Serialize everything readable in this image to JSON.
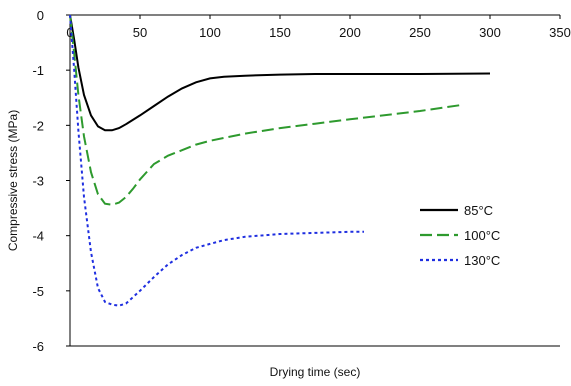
{
  "chart_data": {
    "type": "line",
    "xlabel": "Drying time (sec)",
    "ylabel": "Compressive stress (MPa)",
    "xlim": [
      0,
      350
    ],
    "ylim": [
      -6,
      0
    ],
    "x_ticks": [
      "0",
      "50",
      "100",
      "150",
      "200",
      "250",
      "300",
      "350"
    ],
    "y_ticks": [
      "0",
      "-1",
      "-2",
      "-3",
      "-4",
      "-5",
      "-6"
    ],
    "x_tick_values": [
      0,
      50,
      100,
      150,
      200,
      250,
      300,
      350
    ],
    "y_tick_values": [
      0,
      -1,
      -2,
      -3,
      -4,
      -5,
      -6
    ],
    "grid": false,
    "legend_position": "right",
    "series": [
      {
        "name": "85°C",
        "color": "#000000",
        "dash": "solid",
        "x": [
          0,
          3,
          6,
          10,
          15,
          20,
          25,
          30,
          35,
          40,
          50,
          60,
          70,
          80,
          90,
          100,
          110,
          125,
          150,
          175,
          200,
          250,
          300
        ],
        "y": [
          0,
          -0.45,
          -0.95,
          -1.45,
          -1.82,
          -2.02,
          -2.09,
          -2.09,
          -2.05,
          -1.98,
          -1.82,
          -1.65,
          -1.48,
          -1.33,
          -1.22,
          -1.15,
          -1.12,
          -1.1,
          -1.08,
          -1.07,
          -1.07,
          -1.07,
          -1.06
        ]
      },
      {
        "name": "100°C",
        "color": "#2e9a2e",
        "dash": "dashed",
        "x": [
          0,
          3,
          6,
          10,
          15,
          20,
          25,
          30,
          35,
          40,
          45,
          50,
          60,
          70,
          80,
          90,
          100,
          125,
          150,
          175,
          200,
          250,
          280
        ],
        "y": [
          0,
          -0.7,
          -1.45,
          -2.2,
          -2.85,
          -3.25,
          -3.42,
          -3.44,
          -3.4,
          -3.3,
          -3.15,
          -2.98,
          -2.7,
          -2.55,
          -2.45,
          -2.35,
          -2.28,
          -2.15,
          -2.05,
          -1.97,
          -1.89,
          -1.74,
          -1.63
        ]
      },
      {
        "name": "130°C",
        "color": "#1f2fe0",
        "dash": "dotted",
        "x": [
          0,
          3,
          6,
          10,
          15,
          20,
          25,
          30,
          35,
          40,
          50,
          60,
          70,
          80,
          90,
          100,
          110,
          125,
          150,
          175,
          200,
          210
        ],
        "y": [
          0,
          -1.0,
          -2.1,
          -3.3,
          -4.3,
          -4.95,
          -5.2,
          -5.25,
          -5.27,
          -5.23,
          -5.0,
          -4.75,
          -4.52,
          -4.35,
          -4.22,
          -4.15,
          -4.08,
          -4.02,
          -3.97,
          -3.95,
          -3.93,
          -3.93
        ]
      }
    ]
  }
}
